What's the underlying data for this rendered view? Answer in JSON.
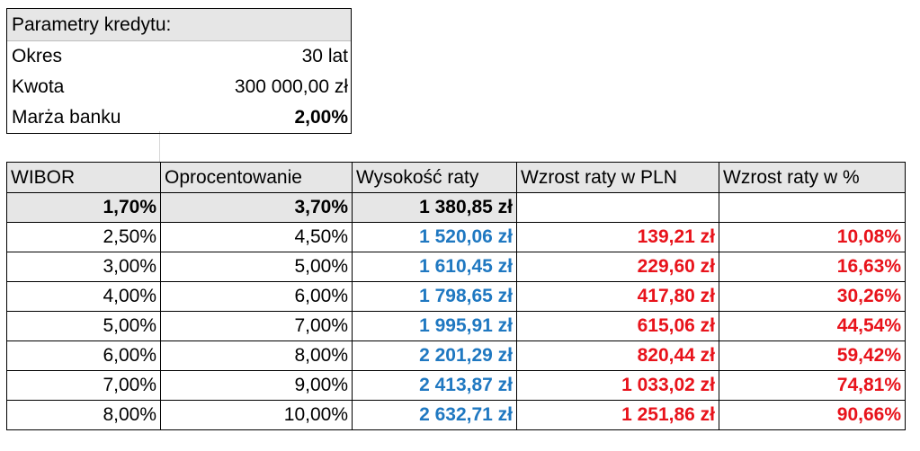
{
  "params": {
    "title": "Parametry kredytu:",
    "rows": [
      {
        "label": "Okres",
        "value": "30 lat"
      },
      {
        "label": "Kwota",
        "value": "300 000,00 zł"
      },
      {
        "label": "Marża banku",
        "value": "2,00%"
      }
    ]
  },
  "table": {
    "headers": [
      "WIBOR",
      "Oprocentowanie",
      "Wysokość raty",
      "Wzrost raty w PLN",
      "Wzrost raty w %"
    ],
    "base_row": {
      "wibor": "1,70%",
      "rate": "3,70%",
      "installment": "1 380,85 zł",
      "increase_pln": "",
      "increase_pct": ""
    },
    "rows": [
      {
        "wibor": "2,50%",
        "rate": "4,50%",
        "installment": "1 520,06 zł",
        "increase_pln": "139,21 zł",
        "increase_pct": "10,08%"
      },
      {
        "wibor": "3,00%",
        "rate": "5,00%",
        "installment": "1 610,45 zł",
        "increase_pln": "229,60 zł",
        "increase_pct": "16,63%"
      },
      {
        "wibor": "4,00%",
        "rate": "6,00%",
        "installment": "1 798,65 zł",
        "increase_pln": "417,80 zł",
        "increase_pct": "30,26%"
      },
      {
        "wibor": "5,00%",
        "rate": "7,00%",
        "installment": "1 995,91 zł",
        "increase_pln": "615,06 zł",
        "increase_pct": "44,54%"
      },
      {
        "wibor": "6,00%",
        "rate": "8,00%",
        "installment": "2 201,29 zł",
        "increase_pln": "820,44 zł",
        "increase_pct": "59,42%"
      },
      {
        "wibor": "7,00%",
        "rate": "9,00%",
        "installment": "2 413,87 zł",
        "increase_pln": "1 033,02 zł",
        "increase_pct": "74,81%"
      },
      {
        "wibor": "8,00%",
        "rate": "10,00%",
        "installment": "2 632,71 zł",
        "increase_pln": "1 251,86 zł",
        "increase_pct": "90,66%"
      }
    ]
  },
  "colors": {
    "header_bg": "#e6e6e6",
    "installment_text": "#1f78c1",
    "increase_text": "#e8131b"
  }
}
